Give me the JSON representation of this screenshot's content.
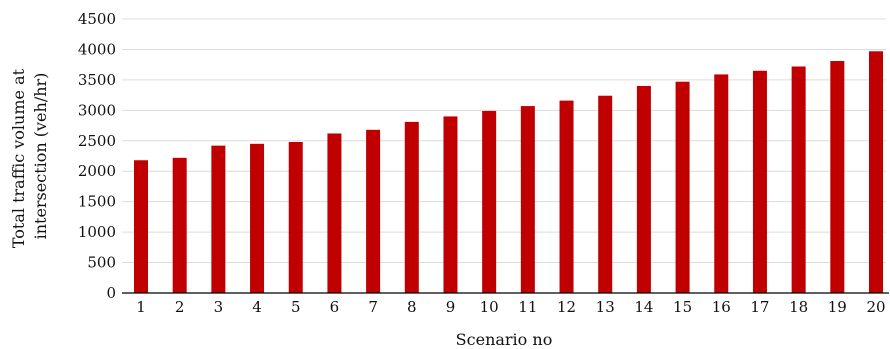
{
  "chart_data": {
    "type": "bar",
    "categories": [
      "1",
      "2",
      "3",
      "4",
      "5",
      "6",
      "7",
      "8",
      "9",
      "10",
      "11",
      "12",
      "13",
      "14",
      "15",
      "16",
      "17",
      "18",
      "19",
      "20"
    ],
    "values": [
      2180,
      2220,
      2420,
      2450,
      2480,
      2620,
      2680,
      2810,
      2900,
      2990,
      3070,
      3160,
      3240,
      3400,
      3470,
      3590,
      3650,
      3720,
      3810,
      3970
    ],
    "xlabel": "Scenario no",
    "ylabel_lines": [
      "Total traffic volume at",
      "intersection (veh/hr)"
    ],
    "ylim": [
      0,
      4500
    ],
    "yticks": [
      "0",
      "500",
      "1000",
      "1500",
      "2000",
      "2500",
      "3000",
      "3500",
      "4000",
      "4500"
    ],
    "grid": true,
    "bar_color": "#c00000",
    "grid_color": "#dcdcdc"
  }
}
